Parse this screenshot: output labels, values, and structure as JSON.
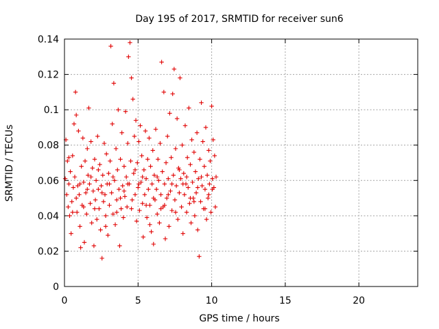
{
  "chart_data": {
    "type": "scatter",
    "title": "Day 195 of 2017, SRMTID for receiver sun6",
    "xlabel": "GPS time / hours",
    "ylabel": "SRMTID / TECUs",
    "xlim": [
      0,
      24
    ],
    "ylim": [
      0,
      0.14
    ],
    "xticks": [
      0,
      5,
      10,
      15,
      20
    ],
    "xtick_labels": [
      "0",
      "5",
      "10",
      "15",
      "20"
    ],
    "yticks": [
      0,
      0.02,
      0.04,
      0.06,
      0.08,
      0.1,
      0.12,
      0.14
    ],
    "ytick_labels": [
      "0",
      "0.02",
      "0.04",
      "0.06",
      "0.08",
      "0.1",
      "0.12",
      "0.14"
    ],
    "grid": true,
    "marker": "+",
    "color": "#e00000",
    "series": [
      {
        "name": "SRMTID",
        "points": [
          [
            0.05,
            0.061
          ],
          [
            0.1,
            0.083
          ],
          [
            0.15,
            0.052
          ],
          [
            0.2,
            0.071
          ],
          [
            0.25,
            0.045
          ],
          [
            0.3,
            0.058
          ],
          [
            0.35,
            0.04
          ],
          [
            0.4,
            0.065
          ],
          [
            0.45,
            0.03
          ],
          [
            0.5,
            0.048
          ],
          [
            0.55,
            0.074
          ],
          [
            0.6,
            0.056
          ],
          [
            0.65,
            0.092
          ],
          [
            0.7,
            0.062
          ],
          [
            0.75,
            0.11
          ],
          [
            0.8,
            0.097
          ],
          [
            0.85,
            0.042
          ],
          [
            0.9,
            0.057
          ],
          [
            0.95,
            0.088
          ],
          [
            1.0,
            0.052
          ],
          [
            1.05,
            0.034
          ],
          [
            1.1,
            0.022
          ],
          [
            1.15,
            0.068
          ],
          [
            1.2,
            0.046
          ],
          [
            1.25,
            0.084
          ],
          [
            1.3,
            0.059
          ],
          [
            1.35,
            0.025
          ],
          [
            1.4,
            0.071
          ],
          [
            1.45,
            0.053
          ],
          [
            1.5,
            0.041
          ],
          [
            1.55,
            0.078
          ],
          [
            1.6,
            0.063
          ],
          [
            1.65,
            0.101
          ],
          [
            1.7,
            0.058
          ],
          [
            1.75,
            0.047
          ],
          [
            1.8,
            0.082
          ],
          [
            1.85,
            0.036
          ],
          [
            1.9,
            0.067
          ],
          [
            1.95,
            0.054
          ],
          [
            2.0,
            0.023
          ],
          [
            2.05,
            0.072
          ],
          [
            2.1,
            0.049
          ],
          [
            2.15,
            0.06
          ],
          [
            2.2,
            0.038
          ],
          [
            2.25,
            0.085
          ],
          [
            2.3,
            0.055
          ],
          [
            2.35,
            0.044
          ],
          [
            2.4,
            0.069
          ],
          [
            2.45,
            0.032
          ],
          [
            2.5,
            0.057
          ],
          [
            2.55,
            0.016
          ],
          [
            2.6,
            0.063
          ],
          [
            2.65,
            0.048
          ],
          [
            2.7,
            0.081
          ],
          [
            2.75,
            0.052
          ],
          [
            2.8,
            0.04
          ],
          [
            2.85,
            0.075
          ],
          [
            2.9,
            0.058
          ],
          [
            2.95,
            0.029
          ],
          [
            3.0,
            0.064
          ],
          [
            3.05,
            0.046
          ],
          [
            3.1,
            0.071
          ],
          [
            3.15,
            0.136
          ],
          [
            3.2,
            0.053
          ],
          [
            3.25,
            0.092
          ],
          [
            3.3,
            0.041
          ],
          [
            3.35,
            0.115
          ],
          [
            3.4,
            0.06
          ],
          [
            3.45,
            0.035
          ],
          [
            3.5,
            0.078
          ],
          [
            3.55,
            0.049
          ],
          [
            3.6,
            0.066
          ],
          [
            3.65,
            0.1
          ],
          [
            3.7,
            0.055
          ],
          [
            3.75,
            0.023
          ],
          [
            3.8,
            0.072
          ],
          [
            3.85,
            0.044
          ],
          [
            3.9,
            0.087
          ],
          [
            3.95,
            0.057
          ],
          [
            4.0,
            0.039
          ],
          [
            4.05,
            0.068
          ],
          [
            4.1,
            0.051
          ],
          [
            4.15,
            0.099
          ],
          [
            4.2,
            0.062
          ],
          [
            4.25,
            0.045
          ],
          [
            4.3,
            0.081
          ],
          [
            4.35,
            0.13
          ],
          [
            4.4,
            0.058
          ],
          [
            4.45,
            0.138
          ],
          [
            4.5,
            0.071
          ],
          [
            4.55,
            0.118
          ],
          [
            4.6,
            0.049
          ],
          [
            4.65,
            0.106
          ],
          [
            4.7,
            0.064
          ],
          [
            4.75,
            0.085
          ],
          [
            4.8,
            0.052
          ],
          [
            4.85,
            0.094
          ],
          [
            4.9,
            0.037
          ],
          [
            4.95,
            0.07
          ],
          [
            5.0,
            0.056
          ],
          [
            5.05,
            0.082
          ],
          [
            5.1,
            0.043
          ],
          [
            5.15,
            0.091
          ],
          [
            5.2,
            0.059
          ],
          [
            5.25,
            0.074
          ],
          [
            5.3,
            0.047
          ],
          [
            5.35,
            0.028
          ],
          [
            5.4,
            0.066
          ],
          [
            5.45,
            0.052
          ],
          [
            5.5,
            0.088
          ],
          [
            5.55,
            0.061
          ],
          [
            5.6,
            0.039
          ],
          [
            5.65,
            0.072
          ],
          [
            5.7,
            0.055
          ],
          [
            5.75,
            0.084
          ],
          [
            5.8,
            0.046
          ],
          [
            5.85,
            0.068
          ],
          [
            5.9,
            0.031
          ],
          [
            5.95,
            0.058
          ],
          [
            6.0,
            0.077
          ],
          [
            6.05,
            0.024
          ],
          [
            6.1,
            0.063
          ],
          [
            6.15,
            0.049
          ],
          [
            6.2,
            0.089
          ],
          [
            6.25,
            0.055
          ],
          [
            6.3,
            0.041
          ],
          [
            6.35,
            0.072
          ],
          [
            6.4,
            0.06
          ],
          [
            6.45,
            0.036
          ],
          [
            6.5,
            0.081
          ],
          [
            6.55,
            0.052
          ],
          [
            6.6,
            0.127
          ],
          [
            6.65,
            0.065
          ],
          [
            6.7,
            0.045
          ],
          [
            6.75,
            0.11
          ],
          [
            6.8,
            0.058
          ],
          [
            6.85,
            0.027
          ],
          [
            6.9,
            0.07
          ],
          [
            6.95,
            0.05
          ],
          [
            7.0,
            0.085
          ],
          [
            7.05,
            0.061
          ],
          [
            7.1,
            0.034
          ],
          [
            7.15,
            0.098
          ],
          [
            7.2,
            0.054
          ],
          [
            7.25,
            0.073
          ],
          [
            7.3,
            0.043
          ],
          [
            7.35,
            0.109
          ],
          [
            7.4,
            0.063
          ],
          [
            7.45,
            0.123
          ],
          [
            7.5,
            0.049
          ],
          [
            7.55,
            0.078
          ],
          [
            7.6,
            0.057
          ],
          [
            7.65,
            0.095
          ],
          [
            7.7,
            0.038
          ],
          [
            7.75,
            0.067
          ],
          [
            7.8,
            0.053
          ],
          [
            7.85,
            0.118
          ],
          [
            7.9,
            0.061
          ],
          [
            7.95,
            0.045
          ],
          [
            8.0,
            0.08
          ],
          [
            8.05,
            0.03
          ],
          [
            8.1,
            0.064
          ],
          [
            8.15,
            0.052
          ],
          [
            8.2,
            0.091
          ],
          [
            8.25,
            0.058
          ],
          [
            8.3,
            0.042
          ],
          [
            8.35,
            0.073
          ],
          [
            8.4,
            0.056
          ],
          [
            8.45,
            0.101
          ],
          [
            8.5,
            0.047
          ],
          [
            8.55,
            0.069
          ],
          [
            8.6,
            0.036
          ],
          [
            8.65,
            0.083
          ],
          [
            8.7,
            0.059
          ],
          [
            8.75,
            0.05
          ],
          [
            8.8,
            0.076
          ],
          [
            8.85,
            0.04
          ],
          [
            8.9,
            0.065
          ],
          [
            8.95,
            0.053
          ],
          [
            9.0,
            0.087
          ],
          [
            9.05,
            0.032
          ],
          [
            9.1,
            0.061
          ],
          [
            9.15,
            0.017
          ],
          [
            9.2,
            0.072
          ],
          [
            9.25,
            0.048
          ],
          [
            9.3,
            0.104
          ],
          [
            9.35,
            0.057
          ],
          [
            9.4,
            0.082
          ],
          [
            9.45,
            0.044
          ],
          [
            9.5,
            0.068
          ],
          [
            9.55,
            0.055
          ],
          [
            9.6,
            0.09
          ],
          [
            9.65,
            0.038
          ],
          [
            9.7,
            0.063
          ],
          [
            9.75,
            0.05
          ],
          [
            9.8,
            0.077
          ],
          [
            9.85,
            0.058
          ],
          [
            9.9,
            0.071
          ],
          [
            9.95,
            0.042
          ],
          [
            10.0,
            0.102
          ],
          [
            10.05,
            0.061
          ],
          [
            10.1,
            0.083
          ],
          [
            10.15,
            0.056
          ],
          [
            10.2,
            0.074
          ],
          [
            10.25,
            0.045
          ],
          [
            10.3,
            0.062
          ],
          [
            0.3,
            0.073
          ],
          [
            0.8,
            0.05
          ],
          [
            1.3,
            0.045
          ],
          [
            1.8,
            0.062
          ],
          [
            2.3,
            0.066
          ],
          [
            2.8,
            0.034
          ],
          [
            3.3,
            0.062
          ],
          [
            3.8,
            0.05
          ],
          [
            4.3,
            0.058
          ],
          [
            4.8,
            0.066
          ],
          [
            5.3,
            0.062
          ],
          [
            5.8,
            0.035
          ],
          [
            6.3,
            0.062
          ],
          [
            6.8,
            0.046
          ],
          [
            7.3,
            0.058
          ],
          [
            7.8,
            0.066
          ],
          [
            8.3,
            0.062
          ],
          [
            8.8,
            0.048
          ],
          [
            9.3,
            0.062
          ],
          [
            9.8,
            0.052
          ],
          [
            0.55,
            0.042
          ],
          [
            1.05,
            0.058
          ],
          [
            1.55,
            0.055
          ],
          [
            2.05,
            0.044
          ],
          [
            2.55,
            0.053
          ],
          [
            3.05,
            0.058
          ],
          [
            3.55,
            0.042
          ],
          [
            4.05,
            0.054
          ],
          [
            4.55,
            0.044
          ],
          [
            5.05,
            0.058
          ],
          [
            5.55,
            0.046
          ],
          [
            6.05,
            0.05
          ],
          [
            6.55,
            0.044
          ],
          [
            7.05,
            0.052
          ],
          [
            7.55,
            0.042
          ],
          [
            8.05,
            0.058
          ],
          [
            8.55,
            0.05
          ],
          [
            9.05,
            0.056
          ],
          [
            9.55,
            0.044
          ],
          [
            10.05,
            0.055
          ]
        ]
      }
    ]
  }
}
